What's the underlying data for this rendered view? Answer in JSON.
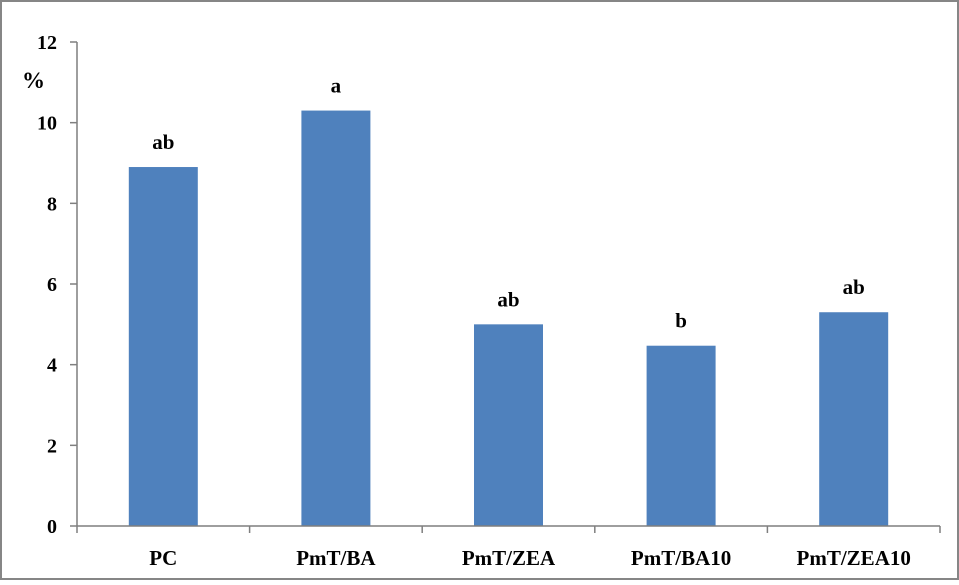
{
  "chart_data": {
    "type": "bar",
    "title": "",
    "xlabel": "",
    "ylabel": "%",
    "ylim": [
      0,
      12
    ],
    "yticks": [
      0,
      2,
      4,
      6,
      8,
      10,
      12
    ],
    "grid": false,
    "categories": [
      "PC",
      "PmT/BA",
      "PmT/ZEA",
      "PmT/BA10",
      "PmT/ZEA10"
    ],
    "values": [
      8.9,
      10.3,
      5.0,
      4.47,
      5.3
    ],
    "data_labels": [
      "ab",
      "a",
      "ab",
      "b",
      "ab"
    ],
    "bar_color": "#4f81bd",
    "axis_color": "#7f7f7f",
    "border_color": "#868686"
  }
}
